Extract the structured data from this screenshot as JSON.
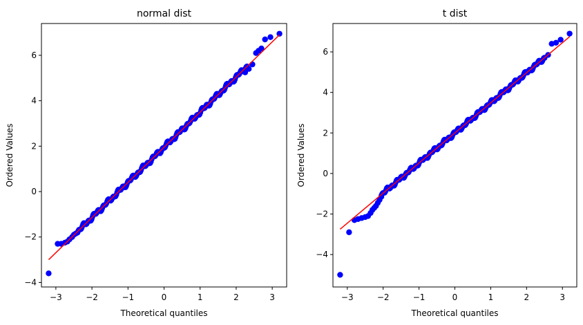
{
  "chart_data": [
    {
      "type": "scatter",
      "title": "normal dist",
      "xlabel": "Theoretical quantiles",
      "ylabel": "Ordered Values",
      "xlim": [
        -3.4,
        3.4
      ],
      "ylim": [
        -4.2,
        7.4
      ],
      "xticks": [
        -3,
        -2,
        -1,
        0,
        1,
        2,
        3
      ],
      "yticks": [
        -4,
        -2,
        0,
        2,
        4,
        6
      ],
      "grid": false,
      "marker_color": "#0000ff",
      "line_color": "#ff0000",
      "fit_line": {
        "x": [
          -3.2,
          3.2
        ],
        "y": [
          -3.0,
          6.9
        ]
      },
      "points": [
        [
          -3.2,
          -3.6
        ],
        [
          -2.95,
          -2.3
        ],
        [
          -2.85,
          -2.3
        ],
        [
          -2.75,
          -2.25
        ],
        [
          -2.68,
          -2.2
        ],
        [
          -2.62,
          -2.1
        ],
        [
          -2.55,
          -2.0
        ],
        [
          -2.5,
          -1.9
        ],
        [
          -2.45,
          -1.85
        ],
        [
          -2.4,
          -1.8
        ],
        [
          2.25,
          5.25
        ],
        [
          2.35,
          5.4
        ],
        [
          2.45,
          5.6
        ],
        [
          2.55,
          6.1
        ],
        [
          2.62,
          6.2
        ],
        [
          2.7,
          6.3
        ],
        [
          2.8,
          6.7
        ],
        [
          2.95,
          6.8
        ],
        [
          3.2,
          6.95
        ]
      ],
      "dense_range": [
        -2.4,
        2.3
      ]
    },
    {
      "type": "scatter",
      "title": "t dist",
      "xlabel": "Theoretical quantiles",
      "ylabel": "Ordered Values",
      "xlim": [
        -3.4,
        3.4
      ],
      "ylim": [
        -5.6,
        7.4
      ],
      "xticks": [
        -3,
        -2,
        -1,
        0,
        1,
        2,
        3
      ],
      "yticks": [
        -4,
        -2,
        0,
        2,
        4,
        6
      ],
      "grid": false,
      "marker_color": "#0000ff",
      "line_color": "#ff0000",
      "fit_line": {
        "x": [
          -3.2,
          3.2
        ],
        "y": [
          -2.75,
          6.75
        ]
      },
      "points": [
        [
          -3.2,
          -5.0
        ],
        [
          -2.95,
          -2.9
        ],
        [
          -2.8,
          -2.3
        ],
        [
          -2.7,
          -2.25
        ],
        [
          -2.6,
          -2.2
        ],
        [
          -2.5,
          -2.15
        ],
        [
          -2.42,
          -2.1
        ],
        [
          -2.35,
          -1.95
        ],
        [
          -2.3,
          -1.8
        ],
        [
          -2.25,
          -1.7
        ],
        [
          -2.2,
          -1.6
        ],
        [
          -2.15,
          -1.45
        ],
        [
          -2.1,
          -1.3
        ],
        [
          -2.05,
          -1.15
        ],
        [
          2.5,
          5.7
        ],
        [
          2.6,
          5.85
        ],
        [
          2.7,
          6.4
        ],
        [
          2.82,
          6.45
        ],
        [
          2.95,
          6.6
        ],
        [
          3.2,
          6.9
        ]
      ],
      "dense_range": [
        -2.05,
        2.5
      ]
    }
  ]
}
